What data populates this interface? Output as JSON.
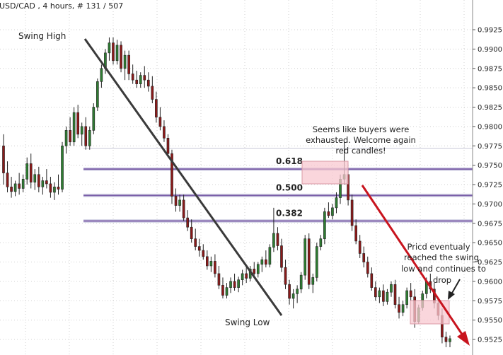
{
  "chart_data": {
    "type": "candlestick",
    "title": "USD/CAD , 4 hours, # 131 / 507",
    "ylim": [
      0.951,
      0.995
    ],
    "grid": true,
    "y_ticks": [
      "0.9925",
      "0.9900",
      "0.9875",
      "0.9850",
      "0.9825",
      "0.9800",
      "0.9775",
      "0.9750",
      "0.9725",
      "0.9700",
      "0.9675",
      "0.9650",
      "0.9625",
      "0.9600",
      "0.9575",
      "0.9550",
      "0.9525"
    ],
    "fib_levels": [
      {
        "label": "0.618",
        "price": 0.9745
      },
      {
        "label": "0.500",
        "price": 0.9711
      },
      {
        "label": "0.382",
        "price": 0.9678
      }
    ],
    "upper_faint_level": 0.9772,
    "annotations": {
      "swing_high": "Swing High",
      "swing_low": "Swing Low",
      "note_top": [
        "Seems like buyers were",
        "exhausted. Welcome again",
        "red candles!"
      ],
      "note_right": [
        "Pricd eventualy",
        "reached the swing",
        "low and continues to",
        "drop"
      ]
    },
    "candles": [
      [
        0.9775,
        0.979,
        0.9725,
        0.974
      ],
      [
        0.974,
        0.9755,
        0.9715,
        0.9722
      ],
      [
        0.9722,
        0.9735,
        0.9708,
        0.9716
      ],
      [
        0.9716,
        0.973,
        0.971,
        0.9726
      ],
      [
        0.9726,
        0.974,
        0.9712,
        0.972
      ],
      [
        0.972,
        0.9738,
        0.9715,
        0.9732
      ],
      [
        0.9732,
        0.976,
        0.9725,
        0.9752
      ],
      [
        0.9752,
        0.9765,
        0.972,
        0.9728
      ],
      [
        0.9728,
        0.9745,
        0.9718,
        0.9738
      ],
      [
        0.9738,
        0.9748,
        0.9715,
        0.9722
      ],
      [
        0.9722,
        0.9735,
        0.9712,
        0.973
      ],
      [
        0.973,
        0.9745,
        0.972,
        0.9726
      ],
      [
        0.9726,
        0.9735,
        0.9708,
        0.9715
      ],
      [
        0.9715,
        0.9728,
        0.9705,
        0.9722
      ],
      [
        0.9722,
        0.9738,
        0.9712,
        0.9719
      ],
      [
        0.9719,
        0.978,
        0.9715,
        0.9775
      ],
      [
        0.9775,
        0.98,
        0.9765,
        0.9795
      ],
      [
        0.9795,
        0.9812,
        0.9775,
        0.978
      ],
      [
        0.978,
        0.9825,
        0.9775,
        0.9818
      ],
      [
        0.9818,
        0.9828,
        0.9785,
        0.979
      ],
      [
        0.979,
        0.9805,
        0.9775,
        0.98
      ],
      [
        0.98,
        0.9812,
        0.977,
        0.9775
      ],
      [
        0.9775,
        0.98,
        0.977,
        0.9795
      ],
      [
        0.9795,
        0.983,
        0.979,
        0.9825
      ],
      [
        0.9825,
        0.9862,
        0.982,
        0.9858
      ],
      [
        0.9858,
        0.988,
        0.985,
        0.9875
      ],
      [
        0.9875,
        0.99,
        0.9868,
        0.9895
      ],
      [
        0.9895,
        0.9915,
        0.9885,
        0.9908
      ],
      [
        0.9908,
        0.9915,
        0.988,
        0.9885
      ],
      [
        0.9885,
        0.9912,
        0.988,
        0.9905
      ],
      [
        0.9905,
        0.991,
        0.987,
        0.9875
      ],
      [
        0.9875,
        0.9898,
        0.986,
        0.9892
      ],
      [
        0.9892,
        0.9898,
        0.986,
        0.9868
      ],
      [
        0.9868,
        0.988,
        0.9855,
        0.986
      ],
      [
        0.986,
        0.9872,
        0.985,
        0.9855
      ],
      [
        0.9855,
        0.987,
        0.985,
        0.9866
      ],
      [
        0.9866,
        0.9878,
        0.985,
        0.986
      ],
      [
        0.986,
        0.987,
        0.9845,
        0.9852
      ],
      [
        0.9852,
        0.9865,
        0.983,
        0.9835
      ],
      [
        0.9835,
        0.9845,
        0.9805,
        0.9812
      ],
      [
        0.9812,
        0.9825,
        0.9795,
        0.98
      ],
      [
        0.98,
        0.9808,
        0.978,
        0.9785
      ],
      [
        0.9785,
        0.979,
        0.976,
        0.9765
      ],
      [
        0.9765,
        0.977,
        0.97,
        0.971
      ],
      [
        0.971,
        0.972,
        0.969,
        0.9698
      ],
      [
        0.9698,
        0.9712,
        0.969,
        0.9705
      ],
      [
        0.9705,
        0.9712,
        0.9678,
        0.9682
      ],
      [
        0.9682,
        0.9692,
        0.9665,
        0.967
      ],
      [
        0.967,
        0.968,
        0.965,
        0.9655
      ],
      [
        0.9655,
        0.9668,
        0.964,
        0.9645
      ],
      [
        0.9645,
        0.9655,
        0.9632,
        0.964
      ],
      [
        0.964,
        0.9648,
        0.9628,
        0.9632
      ],
      [
        0.9632,
        0.964,
        0.9615,
        0.962
      ],
      [
        0.962,
        0.9632,
        0.9612,
        0.9626
      ],
      [
        0.9626,
        0.9635,
        0.9605,
        0.961
      ],
      [
        0.961,
        0.962,
        0.959,
        0.9595
      ],
      [
        0.9595,
        0.9605,
        0.9578,
        0.9582
      ],
      [
        0.9582,
        0.9598,
        0.9578,
        0.9592
      ],
      [
        0.9592,
        0.9605,
        0.9585,
        0.96
      ],
      [
        0.96,
        0.961,
        0.9588,
        0.9592
      ],
      [
        0.9592,
        0.9606,
        0.9586,
        0.9602
      ],
      [
        0.9602,
        0.9615,
        0.9595,
        0.961
      ],
      [
        0.961,
        0.9618,
        0.9598,
        0.9604
      ],
      [
        0.9604,
        0.962,
        0.96,
        0.9616
      ],
      [
        0.9616,
        0.9625,
        0.9605,
        0.961
      ],
      [
        0.961,
        0.9625,
        0.9605,
        0.9622
      ],
      [
        0.9622,
        0.9632,
        0.9612,
        0.9628
      ],
      [
        0.9628,
        0.964,
        0.9618,
        0.9622
      ],
      [
        0.9622,
        0.9648,
        0.9618,
        0.9644
      ],
      [
        0.9644,
        0.9695,
        0.9638,
        0.9662
      ],
      [
        0.9662,
        0.967,
        0.964,
        0.9646
      ],
      [
        0.9646,
        0.9655,
        0.9612,
        0.9618
      ],
      [
        0.9618,
        0.9628,
        0.959,
        0.9596
      ],
      [
        0.9596,
        0.9602,
        0.957,
        0.9578
      ],
      [
        0.9578,
        0.959,
        0.9565,
        0.9584
      ],
      [
        0.9584,
        0.9595,
        0.9572,
        0.959
      ],
      [
        0.959,
        0.9612,
        0.9585,
        0.9608
      ],
      [
        0.9608,
        0.966,
        0.9602,
        0.9655
      ],
      [
        0.9655,
        0.9662,
        0.959,
        0.9596
      ],
      [
        0.9596,
        0.961,
        0.9585,
        0.9605
      ],
      [
        0.9605,
        0.965,
        0.96,
        0.9645
      ],
      [
        0.9645,
        0.966,
        0.964,
        0.9655
      ],
      [
        0.9655,
        0.9695,
        0.9648,
        0.969
      ],
      [
        0.969,
        0.9702,
        0.9682,
        0.9685
      ],
      [
        0.9685,
        0.97,
        0.968,
        0.9695
      ],
      [
        0.9695,
        0.9715,
        0.9688,
        0.9708
      ],
      [
        0.9708,
        0.9738,
        0.97,
        0.9732
      ],
      [
        0.9732,
        0.978,
        0.9725,
        0.9738
      ],
      [
        0.9738,
        0.9745,
        0.9698,
        0.9705
      ],
      [
        0.9705,
        0.9712,
        0.9665,
        0.9672
      ],
      [
        0.9672,
        0.968,
        0.9648,
        0.9652
      ],
      [
        0.9652,
        0.966,
        0.963,
        0.9636
      ],
      [
        0.9636,
        0.9645,
        0.9618,
        0.9625
      ],
      [
        0.9625,
        0.9632,
        0.9605,
        0.961
      ],
      [
        0.961,
        0.9618,
        0.9588,
        0.9592
      ],
      [
        0.9592,
        0.96,
        0.9575,
        0.958
      ],
      [
        0.958,
        0.9592,
        0.9572,
        0.9588
      ],
      [
        0.9588,
        0.9596,
        0.9568,
        0.9574
      ],
      [
        0.9574,
        0.959,
        0.957,
        0.9586
      ],
      [
        0.9586,
        0.96,
        0.958,
        0.9596
      ],
      [
        0.9596,
        0.9602,
        0.9565,
        0.957
      ],
      [
        0.957,
        0.958,
        0.9552,
        0.956
      ],
      [
        0.956,
        0.9575,
        0.9555,
        0.957
      ],
      [
        0.957,
        0.9592,
        0.9565,
        0.9588
      ],
      [
        0.9588,
        0.9598,
        0.9575,
        0.958
      ],
      [
        0.958,
        0.959,
        0.954,
        0.9548
      ],
      [
        0.9548,
        0.957,
        0.9545,
        0.9566
      ],
      [
        0.9566,
        0.9588,
        0.9562,
        0.9584
      ],
      [
        0.9584,
        0.9605,
        0.9578,
        0.96
      ],
      [
        0.96,
        0.961,
        0.9585,
        0.959
      ],
      [
        0.959,
        0.9598,
        0.9565,
        0.9572
      ],
      [
        0.9572,
        0.9578,
        0.955,
        0.9556
      ],
      [
        0.9556,
        0.9565,
        0.952,
        0.9528
      ],
      [
        0.9528,
        0.9535,
        0.9515,
        0.9522
      ],
      [
        0.9522,
        0.953,
        0.9515,
        0.9526
      ]
    ]
  }
}
